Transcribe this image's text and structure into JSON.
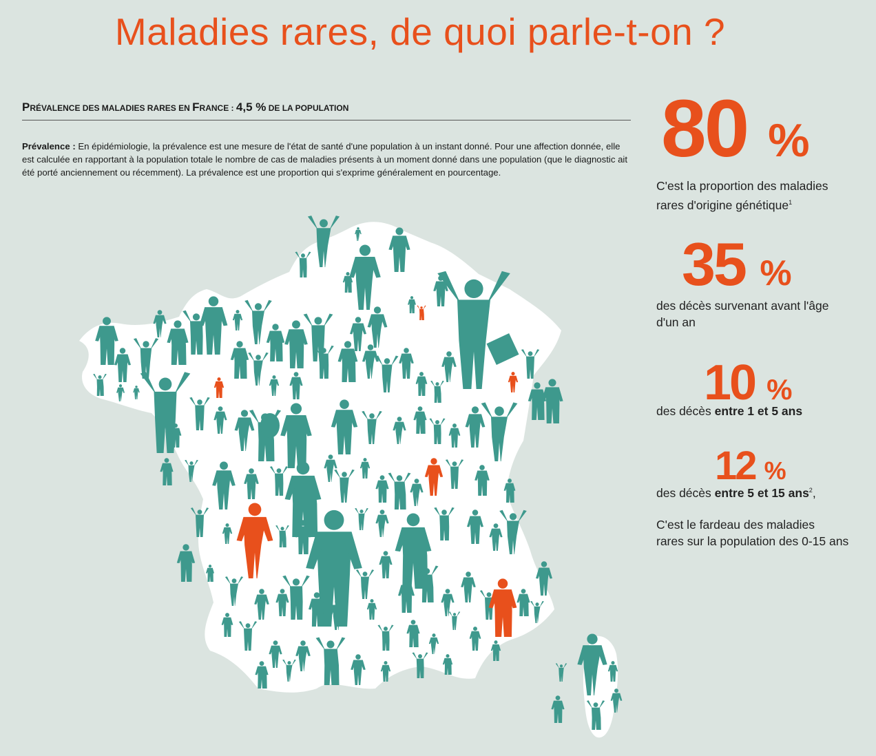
{
  "title": "Maladies rares, de quoi parle-t-on ?",
  "prevalence": {
    "heading_p": "P",
    "heading_part1": "RÉVALENCE DES MALADIES RARES EN ",
    "heading_f": "F",
    "heading_part2": "RANCE : ",
    "heading_value": "4,5 %",
    "heading_part3": " DE LA POPULATION",
    "definition_term": "Prévalence :",
    "definition_text": " En épidémiologie, la prévalence est une mesure de l'état de santé d'une population à un instant donné. Pour une affection donnée, elle est calculée en rapportant à la population totale le nombre de cas de maladies présents à un moment donné dans une population (que le diagnostic ait été porté anciennement ou récemment). La prévalence est une proportion qui s'exprime généralement en pourcentage."
  },
  "stats": [
    {
      "number": "80",
      "unit": "%",
      "line1": "C'est la proportion des maladies",
      "line2": "rares d'origine génétique",
      "sup": "1"
    },
    {
      "number": "35",
      "unit": "%",
      "line1": "des décès survenant avant l'âge",
      "line2": "d'un an"
    },
    {
      "number": "10",
      "unit": "%",
      "pre": "des décès ",
      "bold": "entre 1 et 5 ans"
    },
    {
      "number": "12",
      "unit": "%",
      "pre": "des décès ",
      "bold": "entre 5 et 15 ans",
      "sup": "2",
      "post": ","
    }
  ],
  "conclusion": {
    "line1": "C'est le fardeau des maladies",
    "line2": "rares sur la population des 0-15 ans"
  },
  "colors": {
    "accent": "#e8501c",
    "figure": "#3e998d",
    "map": "#ffffff",
    "background": "#dbe4e0"
  }
}
